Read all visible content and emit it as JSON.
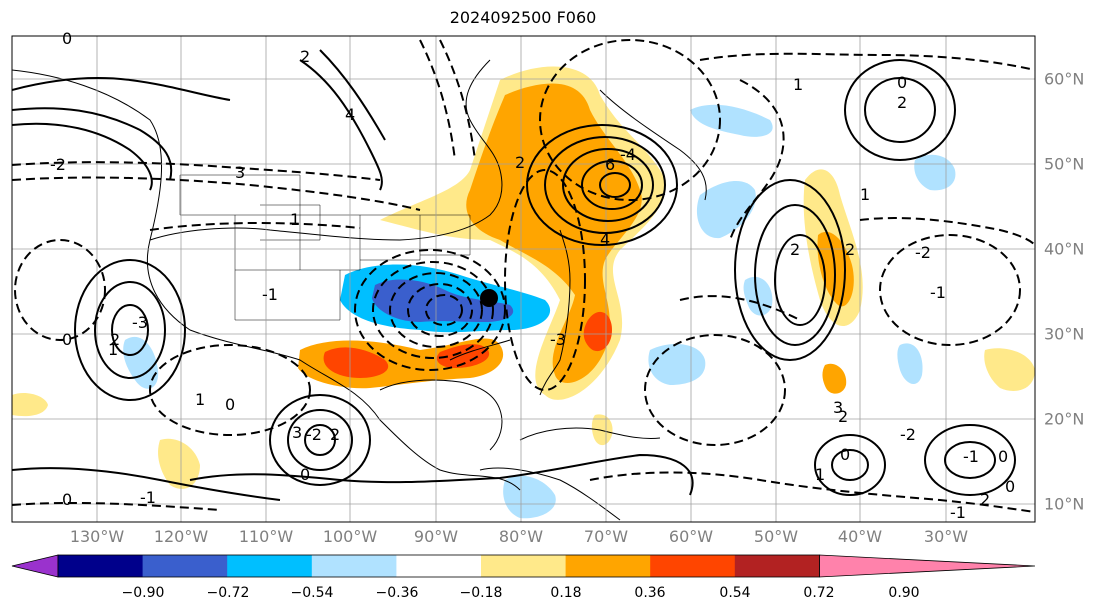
{
  "title": "2024092500 F060",
  "lon_labels": [
    "130°W",
    "120°W",
    "110°W",
    "100°W",
    "90°W",
    "80°W",
    "70°W",
    "60°W",
    "50°W",
    "40°W",
    "30°W"
  ],
  "lat_labels": [
    "60°N",
    "50°N",
    "40°N",
    "30°N",
    "20°N",
    "10°N"
  ],
  "colorbar": {
    "ticks": [
      "−0.90",
      "−0.72",
      "−0.54",
      "−0.36",
      "−0.18",
      "0.18",
      "0.36",
      "0.54",
      "0.72",
      "0.90"
    ],
    "colors": [
      "#9a32cd",
      "#00008b",
      "#3a5fcd",
      "#00bfff",
      "#b0e2ff",
      "#ffffff",
      "#ffe98a",
      "#ffa500",
      "#ff4500",
      "#b22222",
      "#ff82ab"
    ]
  },
  "contour_labels": [
    "0",
    "2",
    "4",
    "6",
    "-2",
    "3",
    "1",
    "-1",
    "-3",
    "0",
    "2",
    "0",
    "-2",
    "2",
    "1",
    "3",
    "-1",
    "0",
    "1",
    "2",
    "-2",
    "2",
    "0",
    "-1",
    "1",
    "2",
    "0",
    "-1",
    "0",
    "3",
    "-3",
    "4",
    "-4",
    "2",
    "1",
    "-2",
    "2",
    "0",
    "1",
    "2",
    "0",
    "-1"
  ],
  "marker": {
    "lon": -84.2,
    "lat": 34.2
  }
}
